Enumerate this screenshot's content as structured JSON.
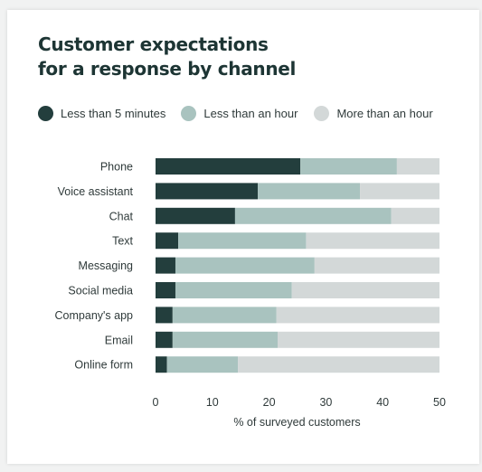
{
  "header": {
    "title_line1": "Customer expectations",
    "title_line2": "for a response by channel"
  },
  "colors": {
    "background": "#f1f2f2",
    "card": "#ffffff",
    "title": "#1d3534",
    "text": "#2f3a3a"
  },
  "legend": {
    "items": [
      {
        "label": "Less than 5 minutes",
        "color": "#233e3d"
      },
      {
        "label": "Less than an hour",
        "color": "#a9c3bf"
      },
      {
        "label": "More than an hour",
        "color": "#d3d8d8"
      }
    ]
  },
  "chart_data": {
    "type": "bar",
    "orientation": "horizontal",
    "stacked": true,
    "title": "Customer expectations for a response by channel",
    "xlabel": "% of surveyed customers",
    "ylabel": "",
    "xlim": [
      0,
      50
    ],
    "xticks": [
      0,
      10,
      20,
      30,
      40,
      50
    ],
    "grid": false,
    "legend_position": "top",
    "categories": [
      "Phone",
      "Voice assistant",
      "Chat",
      "Text",
      "Messaging",
      "Social media",
      "Company's app",
      "Email",
      "Online form"
    ],
    "series": [
      {
        "name": "Less than 5 minutes",
        "color": "#233e3d",
        "values": [
          25.5,
          18,
          14,
          4,
          3.5,
          3.5,
          3,
          3,
          2
        ]
      },
      {
        "name": "Less than an hour",
        "color": "#a9c3bf",
        "values": [
          17,
          18,
          27.5,
          22.5,
          24.5,
          20.5,
          18.3,
          18.5,
          12.5
        ]
      },
      {
        "name": "More than an hour",
        "color": "#d3d8d8",
        "values": [
          7.5,
          14,
          8.5,
          23.5,
          22,
          26,
          28.7,
          28.5,
          35.5
        ]
      }
    ]
  }
}
